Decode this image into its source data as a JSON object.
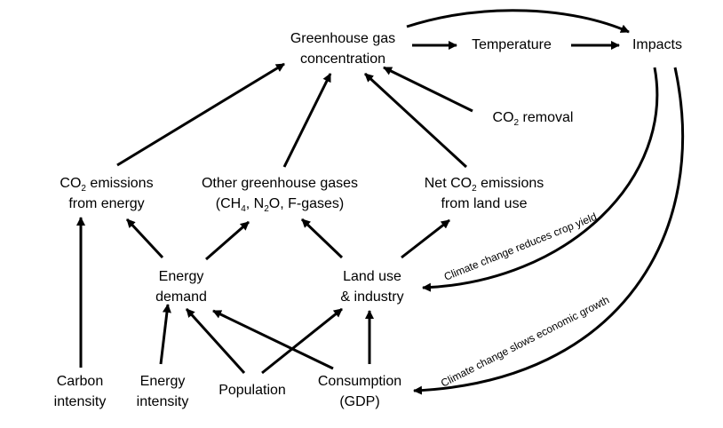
{
  "nodes": {
    "ghg_concentration": {
      "line1": "Greenhouse gas",
      "line2": "concentration"
    },
    "temperature": {
      "label": "Temperature"
    },
    "impacts": {
      "label": "Impacts"
    },
    "co2_removal": {
      "pre": "CO",
      "sub": "2",
      "post": " removal"
    },
    "co2_energy": {
      "pre": "CO",
      "sub": "2",
      "post": " emissions",
      "line2": "from energy"
    },
    "other_ghg": {
      "line1": "Other greenhouse gases",
      "l2a": "(CH",
      "l2sub1": "4",
      "l2b": ", N",
      "l2sub2": "2",
      "l2c": "O, F-gases)"
    },
    "net_co2_land": {
      "pre": "Net CO",
      "sub": "2",
      "post": " emissions",
      "line2": "from land use"
    },
    "energy_demand": {
      "line1": "Energy",
      "line2": "demand"
    },
    "land_use_industry": {
      "line1": "Land use",
      "line2": "& industry"
    },
    "carbon_intensity": {
      "line1": "Carbon",
      "line2": "intensity"
    },
    "energy_intensity": {
      "line1": "Energy",
      "line2": "intensity"
    },
    "population": {
      "label": "Population"
    },
    "consumption": {
      "line1": "Consumption",
      "line2": "(GDP)"
    }
  },
  "feedbacks": {
    "crop_yield": "Climate change reduces crop yield",
    "economic_growth": "Climate change slows economic growth"
  },
  "edges": [
    {
      "from": "ghg_concentration",
      "to": "temperature"
    },
    {
      "from": "temperature",
      "to": "impacts"
    },
    {
      "from": "ghg_concentration",
      "to": "impacts"
    },
    {
      "from": "co2_removal",
      "to": "ghg_concentration"
    },
    {
      "from": "co2_energy",
      "to": "ghg_concentration"
    },
    {
      "from": "other_ghg",
      "to": "ghg_concentration"
    },
    {
      "from": "net_co2_land",
      "to": "ghg_concentration"
    },
    {
      "from": "energy_demand",
      "to": "co2_energy"
    },
    {
      "from": "energy_demand",
      "to": "other_ghg"
    },
    {
      "from": "land_use_industry",
      "to": "other_ghg"
    },
    {
      "from": "land_use_industry",
      "to": "net_co2_land"
    },
    {
      "from": "carbon_intensity",
      "to": "co2_energy"
    },
    {
      "from": "energy_intensity",
      "to": "energy_demand"
    },
    {
      "from": "population",
      "to": "energy_demand"
    },
    {
      "from": "population",
      "to": "land_use_industry"
    },
    {
      "from": "consumption",
      "to": "energy_demand"
    },
    {
      "from": "consumption",
      "to": "land_use_industry"
    },
    {
      "from": "impacts",
      "to": "land_use_industry"
    },
    {
      "from": "impacts",
      "to": "consumption"
    }
  ]
}
